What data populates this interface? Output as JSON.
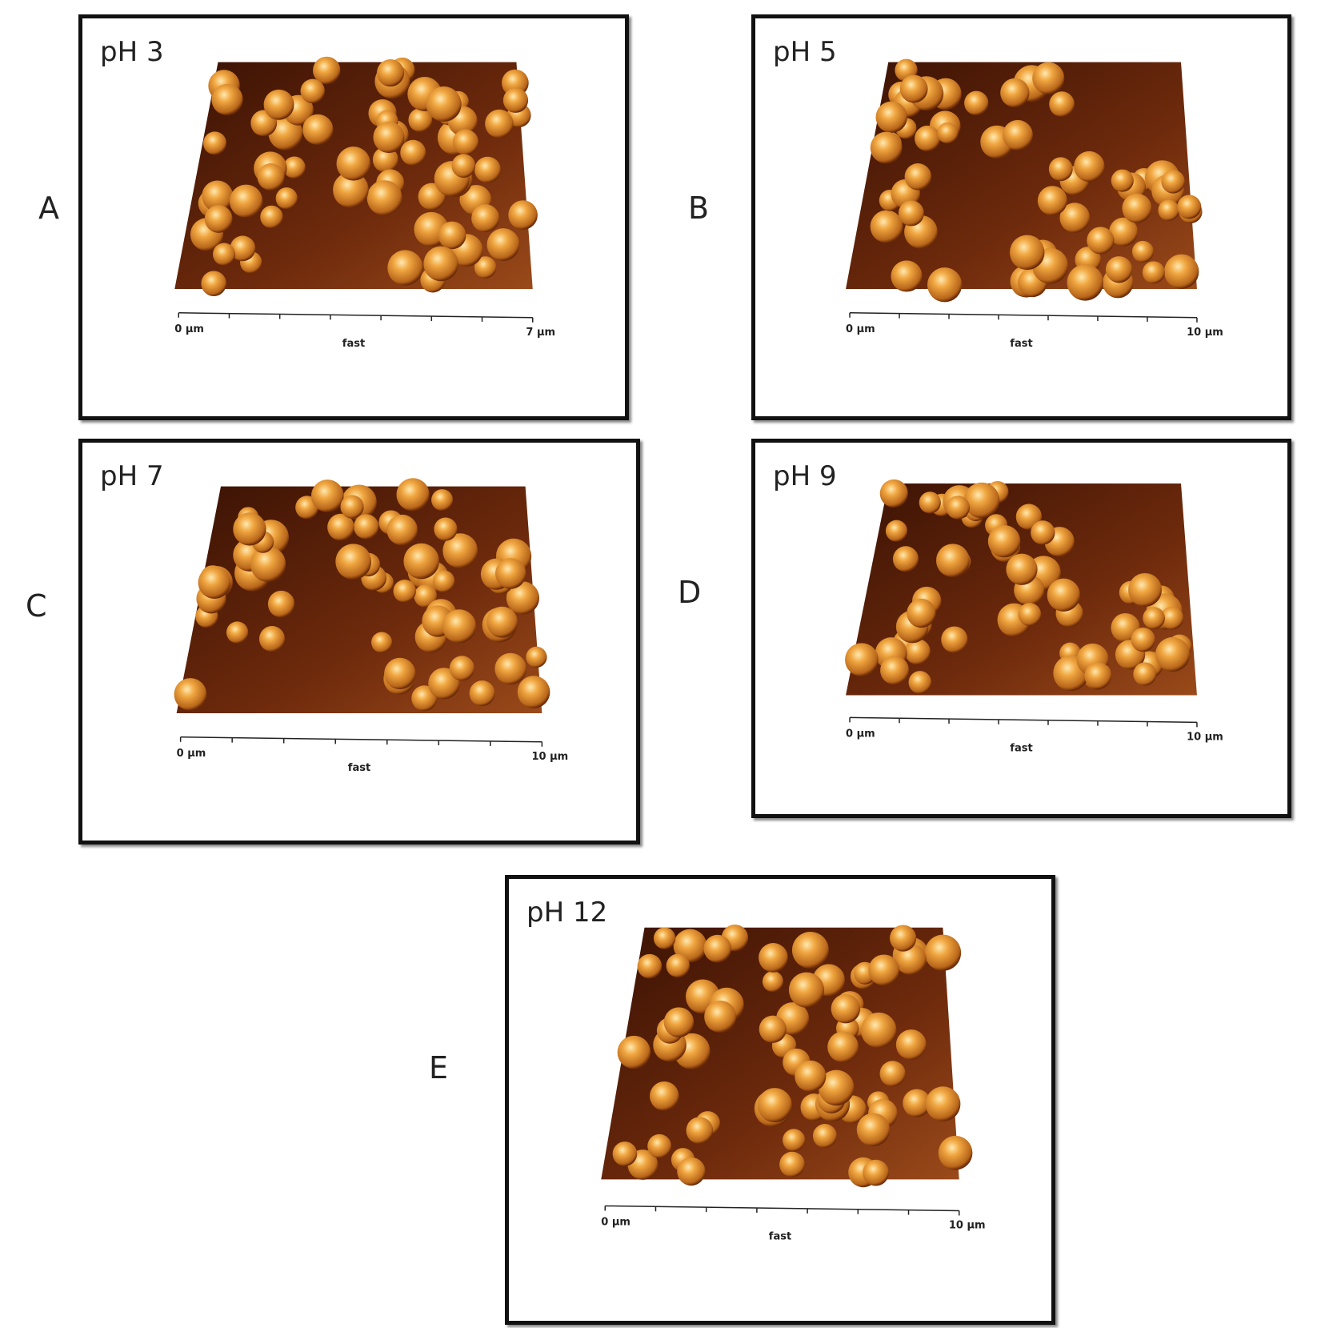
{
  "panels": [
    {
      "letter": "A",
      "ph": "pH 3",
      "axis_start": "0 µm",
      "axis_name": "fast",
      "axis_end": "7 µm"
    },
    {
      "letter": "B",
      "ph": "pH 5",
      "axis_start": "0 µm",
      "axis_name": "fast",
      "axis_end": "10 µm"
    },
    {
      "letter": "C",
      "ph": "pH 7",
      "axis_start": "0 µm",
      "axis_name": "fast",
      "axis_end": "10 µm"
    },
    {
      "letter": "D",
      "ph": "pH 9",
      "axis_start": "0 µm",
      "axis_name": "fast",
      "axis_end": "10 µm"
    },
    {
      "letter": "E",
      "ph": "pH 12",
      "axis_start": "0 µm",
      "axis_name": "fast",
      "axis_end": "10 µm"
    }
  ]
}
